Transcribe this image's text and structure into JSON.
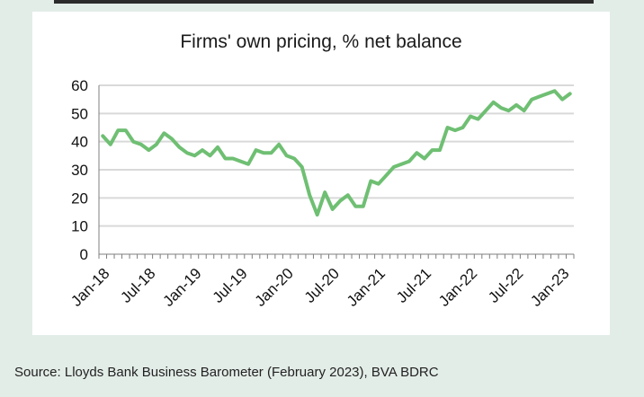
{
  "chart_data": {
    "type": "line",
    "title": "Firms' own pricing, % net balance",
    "xlabel": "",
    "ylabel": "",
    "ylim": [
      0,
      60
    ],
    "yticks": [
      0,
      10,
      20,
      30,
      40,
      50,
      60
    ],
    "xtick_labels": [
      "Jan-18",
      "Jul-18",
      "Jan-19",
      "Jul-19",
      "Jan-20",
      "Jul-20",
      "Jan-21",
      "Jul-21",
      "Jan-22",
      "Jul-22",
      "Jan-23"
    ],
    "grid": "horizontal",
    "legend": "none",
    "line_color": "#6fbf73",
    "x": [
      "Jan-18",
      "Feb-18",
      "Mar-18",
      "Apr-18",
      "May-18",
      "Jun-18",
      "Jul-18",
      "Aug-18",
      "Sep-18",
      "Oct-18",
      "Nov-18",
      "Dec-18",
      "Jan-19",
      "Feb-19",
      "Mar-19",
      "Apr-19",
      "May-19",
      "Jun-19",
      "Jul-19",
      "Aug-19",
      "Sep-19",
      "Oct-19",
      "Nov-19",
      "Dec-19",
      "Jan-20",
      "Feb-20",
      "Mar-20",
      "Apr-20",
      "May-20",
      "Jun-20",
      "Jul-20",
      "Aug-20",
      "Sep-20",
      "Oct-20",
      "Nov-20",
      "Dec-20",
      "Jan-21",
      "Feb-21",
      "Mar-21",
      "Apr-21",
      "May-21",
      "Jun-21",
      "Jul-21",
      "Aug-21",
      "Sep-21",
      "Oct-21",
      "Nov-21",
      "Dec-21",
      "Jan-22",
      "Feb-22",
      "Mar-22",
      "Apr-22",
      "May-22",
      "Jun-22",
      "Jul-22",
      "Aug-22",
      "Sep-22",
      "Oct-22",
      "Nov-22",
      "Dec-22",
      "Jan-23",
      "Feb-23"
    ],
    "series": [
      {
        "values": [
          42,
          39,
          44,
          44,
          40,
          39,
          37,
          39,
          43,
          41,
          38,
          36,
          35,
          37,
          35,
          38,
          34,
          34,
          33,
          32,
          37,
          36,
          36,
          39,
          35,
          34,
          31,
          21,
          14,
          22,
          16,
          19,
          21,
          17,
          17,
          26,
          25,
          28,
          31,
          32,
          33,
          36,
          34,
          37,
          37,
          45,
          44,
          45,
          49,
          48,
          51,
          54,
          52,
          51,
          53,
          51,
          55,
          56,
          57,
          58,
          55,
          57
        ]
      }
    ]
  },
  "footer": {
    "source": "Source: Lloyds Bank Business Barometer (February 2023), BVA BDRC"
  }
}
